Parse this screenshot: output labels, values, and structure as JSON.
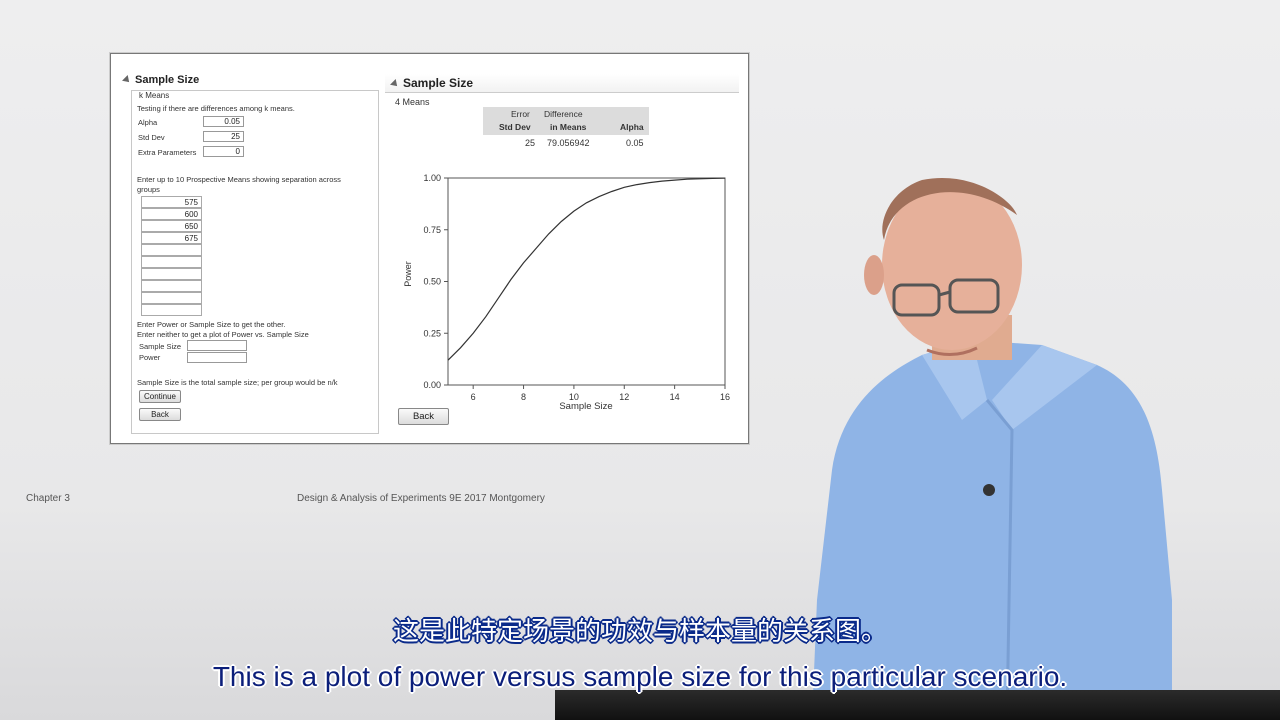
{
  "window": {
    "left_panel": {
      "title": "Sample Size",
      "group_label": "k Means",
      "description": "Testing if there are differences among k means.",
      "params": [
        {
          "label": "Alpha",
          "value": "0.05"
        },
        {
          "label": "Std Dev",
          "value": "25"
        },
        {
          "label": "Extra Parameters",
          "value": "0"
        }
      ],
      "means_prompt_1": "Enter up to 10 Prospective Means showing separation across",
      "means_prompt_2": "groups",
      "means": [
        "575",
        "600",
        "650",
        "675",
        "",
        "",
        "",
        "",
        "",
        ""
      ],
      "power_prompt_1": "Enter Power or Sample Size to get the other.",
      "power_prompt_2": "Enter neither to get a plot of Power vs. Sample Size",
      "sample_size_label": "Sample Size",
      "power_label": "Power",
      "sample_size_value": "",
      "power_value": "",
      "note": "Sample Size is the total sample size; per group would be n/k",
      "continue_label": "Continue",
      "back_label": "Back"
    },
    "right_panel": {
      "title": "Sample Size",
      "subtitle": "4 Means",
      "table": {
        "h1a": "Error",
        "h1b": "Std Dev",
        "h2a": "Difference",
        "h2b": "in Means",
        "h3": "Alpha",
        "v1": "25",
        "v2": "79.056942",
        "v3": "0.05"
      },
      "back_label": "Back"
    }
  },
  "chart_data": {
    "type": "line",
    "title": "",
    "xlabel": "Sample Size",
    "ylabel": "Power",
    "xlim": [
      5,
      16
    ],
    "ylim": [
      0,
      1
    ],
    "x_ticks": [
      "6",
      "8",
      "10",
      "12",
      "14",
      "16"
    ],
    "y_ticks": [
      "0.00",
      "0.25",
      "0.50",
      "0.75",
      "1.00"
    ],
    "series": [
      {
        "x": [
          5,
          5.5,
          6,
          6.5,
          7,
          7.5,
          8,
          8.5,
          9,
          9.5,
          10,
          10.5,
          11,
          11.5,
          12,
          12.5,
          13,
          13.5,
          14,
          14.5,
          15,
          15.5,
          16
        ],
        "y": [
          0.12,
          0.18,
          0.25,
          0.33,
          0.42,
          0.51,
          0.59,
          0.66,
          0.73,
          0.79,
          0.84,
          0.88,
          0.91,
          0.935,
          0.955,
          0.968,
          0.978,
          0.985,
          0.99,
          0.994,
          0.996,
          0.998,
          0.999
        ]
      }
    ],
    "grid": false,
    "line_color": "#333333"
  },
  "slide_footer": {
    "left": "Chapter 3",
    "center": "Design & Analysis of Experiments 9E 2017 Montgomery"
  },
  "subtitles": {
    "chinese": "这是此特定场景的功效与样本量的关系图。",
    "english": "This is a plot of power versus sample size for this particular scenario."
  }
}
